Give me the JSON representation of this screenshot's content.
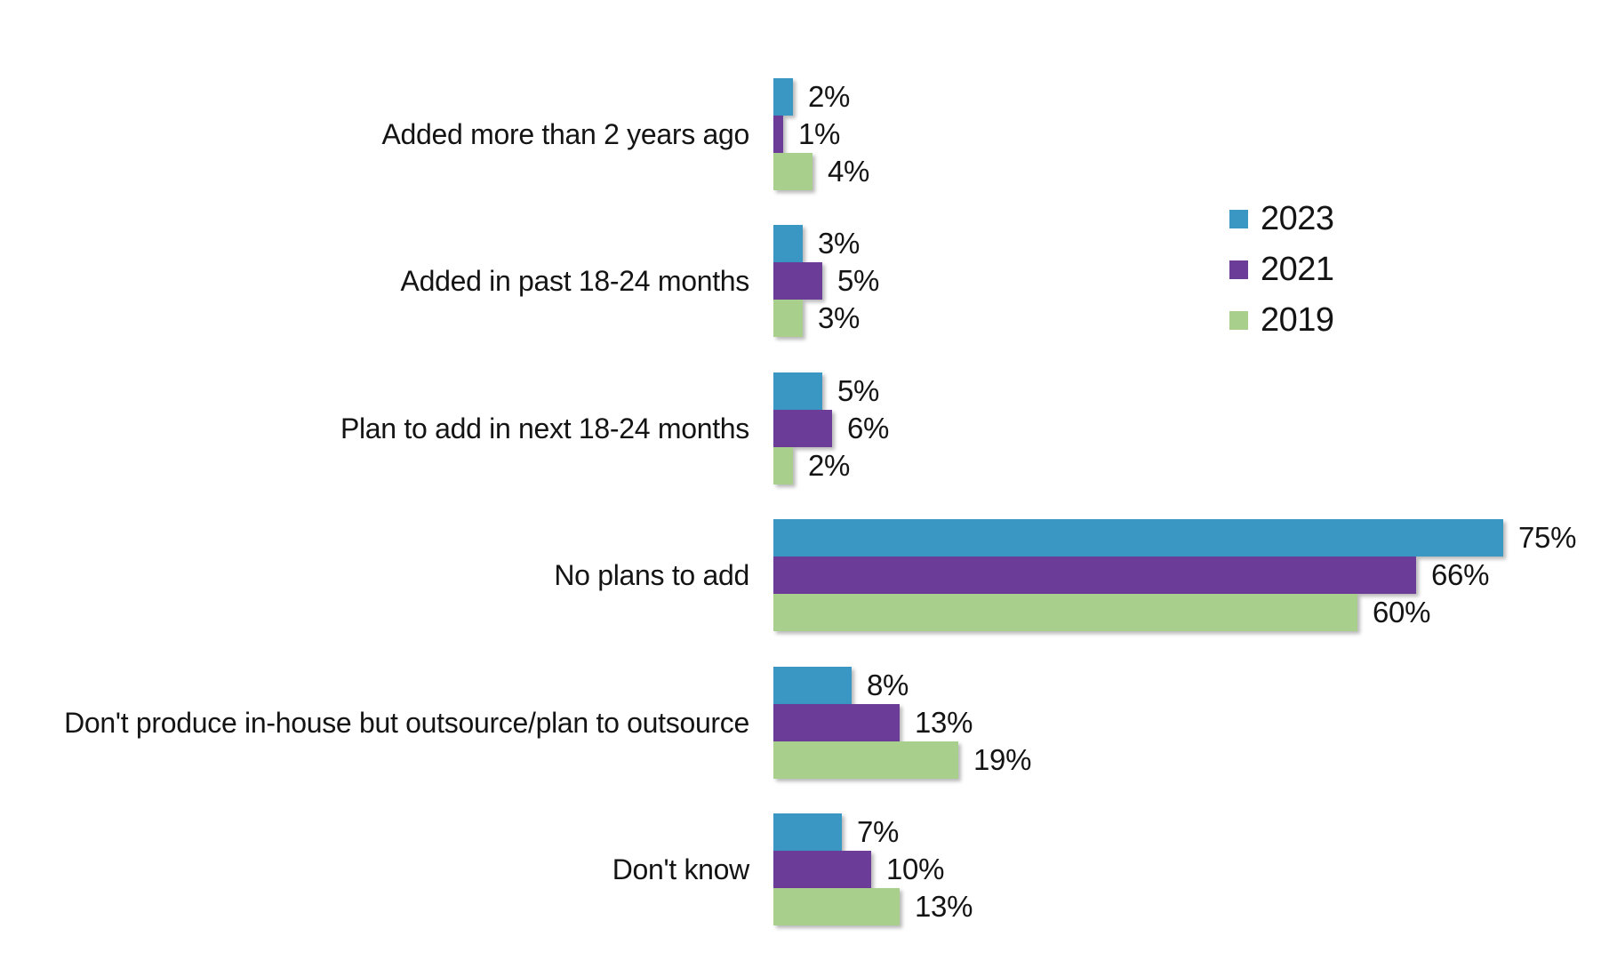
{
  "chart_data": {
    "type": "bar",
    "orientation": "horizontal",
    "title": "",
    "xlabel": "",
    "ylabel": "",
    "grid": false,
    "xlim": [
      0,
      80
    ],
    "value_suffix": "%",
    "legend_position": "right",
    "categories": [
      "Added more than 2 years ago",
      "Added in past 18-24 months",
      "Plan to add in next 18-24 months",
      "No plans to add",
      "Don't produce in-house but outsource/plan to outsource",
      "Don't know"
    ],
    "series": [
      {
        "name": "2023",
        "color": "#3a97c3",
        "values": [
          2,
          3,
          5,
          75,
          8,
          7
        ],
        "display": [
          "2%",
          "3%",
          "5%",
          "75%",
          "8%",
          "7%"
        ]
      },
      {
        "name": "2021",
        "color": "#6b3c98",
        "values": [
          1,
          5,
          6,
          66,
          13,
          10
        ],
        "display": [
          "1%",
          "5%",
          "6%",
          "66%",
          "13%",
          "10%"
        ]
      },
      {
        "name": "2019",
        "color": "#a8cf8b",
        "values": [
          4,
          3,
          2,
          60,
          19,
          13
        ],
        "display": [
          "4%",
          "3%",
          "2%",
          "60%",
          "19%",
          "13%"
        ]
      }
    ]
  },
  "layout_note_colors": {
    "background": "#ffffff",
    "text": "#141414"
  }
}
